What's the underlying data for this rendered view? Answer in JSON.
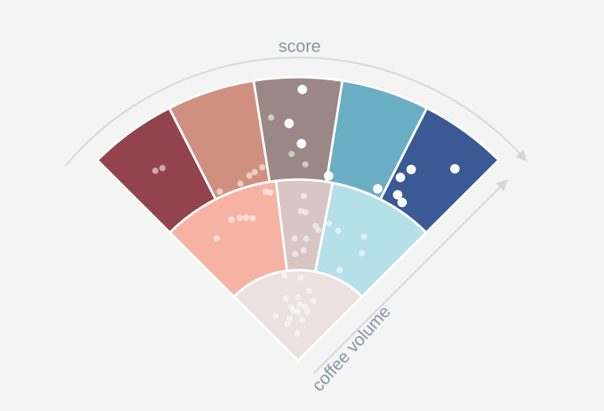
{
  "chart_data": {
    "type": "radial-segmented-fan",
    "title": "",
    "axis_labels": {
      "angular": "score",
      "radial": "coffee volume"
    },
    "outer_ring_colors": [
      "#92434c",
      "#d09080",
      "#9b8785",
      "#6aaec3",
      "#3b5995"
    ],
    "middle_ring_colors": [
      "#f6b3a3",
      "#d8c5c4",
      "#b6e0e8"
    ],
    "inner_ring_color": "#eae1e0",
    "separator_color": "#ffffff",
    "arrow_color": "#d6d6d6",
    "marker_color": "#ffffff",
    "outer_ring_points": [
      {
        "segment": 0,
        "t": 0.45,
        "r": 0.55,
        "emphasis": false
      },
      {
        "segment": 0,
        "t": 0.55,
        "r": 0.53,
        "emphasis": false
      },
      {
        "segment": 1,
        "t": 0.68,
        "r": 0.1,
        "emphasis": false
      },
      {
        "segment": 1,
        "t": 0.78,
        "r": 0.12,
        "emphasis": false
      },
      {
        "segment": 1,
        "t": 0.5,
        "r": 0.05,
        "emphasis": false
      },
      {
        "segment": 1,
        "t": 0.92,
        "r": 0.15,
        "emphasis": false
      },
      {
        "segment": 1,
        "t": 0.12,
        "r": 0.05,
        "emphasis": false
      },
      {
        "segment": 2,
        "t": 0.55,
        "r": 0.88,
        "emphasis": true
      },
      {
        "segment": 2,
        "t": 0.38,
        "r": 0.55,
        "emphasis": true
      },
      {
        "segment": 2,
        "t": 0.55,
        "r": 0.35,
        "emphasis": true
      },
      {
        "segment": 2,
        "t": 0.15,
        "r": 0.62,
        "emphasis": false
      },
      {
        "segment": 2,
        "t": 0.4,
        "r": 0.25,
        "emphasis": false
      },
      {
        "segment": 2,
        "t": 0.62,
        "r": 0.15,
        "emphasis": false
      },
      {
        "segment": 3,
        "t": 0.02,
        "r": 0.06,
        "emphasis": true
      },
      {
        "segment": 3,
        "t": 0.88,
        "r": 0.08,
        "emphasis": true
      },
      {
        "segment": 4,
        "t": 0.2,
        "r": 0.4,
        "emphasis": true
      },
      {
        "segment": 4,
        "t": 0.12,
        "r": 0.28,
        "emphasis": true
      },
      {
        "segment": 4,
        "t": 0.22,
        "r": 0.12,
        "emphasis": true
      },
      {
        "segment": 4,
        "t": 0.35,
        "r": 0.08,
        "emphasis": true
      },
      {
        "segment": 4,
        "t": 0.68,
        "r": 0.65,
        "emphasis": true
      }
    ],
    "middle_ring_points": [
      {
        "segment": 0,
        "t": 0.3,
        "r": 0.62,
        "emphasis": false
      },
      {
        "segment": 0,
        "t": 0.52,
        "r": 0.72,
        "emphasis": false
      },
      {
        "segment": 0,
        "t": 0.6,
        "r": 0.7,
        "emphasis": false
      },
      {
        "segment": 0,
        "t": 0.66,
        "r": 0.68,
        "emphasis": false
      },
      {
        "segment": 0,
        "t": 0.72,
        "r": 0.65,
        "emphasis": false
      },
      {
        "segment": 0,
        "t": 0.9,
        "r": 0.9,
        "emphasis": false
      },
      {
        "segment": 0,
        "t": 0.94,
        "r": 0.88,
        "emphasis": false
      },
      {
        "segment": 1,
        "t": 0.5,
        "r": 0.82,
        "emphasis": false
      },
      {
        "segment": 1,
        "t": 0.45,
        "r": 0.65,
        "emphasis": false
      },
      {
        "segment": 1,
        "t": 0.55,
        "r": 0.64,
        "emphasis": false
      },
      {
        "segment": 1,
        "t": 0.3,
        "r": 0.35,
        "emphasis": false
      },
      {
        "segment": 1,
        "t": 0.6,
        "r": 0.35,
        "emphasis": false
      },
      {
        "segment": 1,
        "t": 0.8,
        "r": 0.5,
        "emphasis": false
      },
      {
        "segment": 1,
        "t": 0.88,
        "r": 0.46,
        "emphasis": false
      },
      {
        "segment": 1,
        "t": 0.3,
        "r": 0.18,
        "emphasis": false
      },
      {
        "segment": 1,
        "t": 0.55,
        "r": 0.22,
        "emphasis": false
      },
      {
        "segment": 2,
        "t": 0.05,
        "r": 0.55,
        "emphasis": false
      },
      {
        "segment": 2,
        "t": 0.18,
        "r": 0.5,
        "emphasis": false
      },
      {
        "segment": 2,
        "t": 0.5,
        "r": 0.55,
        "emphasis": false
      },
      {
        "segment": 2,
        "t": 0.58,
        "r": 0.38,
        "emphasis": false
      },
      {
        "segment": 2,
        "t": 0.4,
        "r": 0.1,
        "emphasis": false
      }
    ],
    "inner_ring_points": [
      {
        "t": 0.4,
        "r": 0.95,
        "emphasis": false
      },
      {
        "t": 0.52,
        "r": 0.92,
        "emphasis": false
      },
      {
        "t": 0.38,
        "r": 0.7,
        "emphasis": false
      },
      {
        "t": 0.5,
        "r": 0.7,
        "emphasis": false
      },
      {
        "t": 0.6,
        "r": 0.78,
        "emphasis": false
      },
      {
        "t": 0.42,
        "r": 0.6,
        "emphasis": false
      },
      {
        "t": 0.52,
        "r": 0.62,
        "emphasis": false
      },
      {
        "t": 0.58,
        "r": 0.6,
        "emphasis": false
      },
      {
        "t": 0.66,
        "r": 0.68,
        "emphasis": false
      },
      {
        "t": 0.44,
        "r": 0.55,
        "emphasis": false
      },
      {
        "t": 0.5,
        "r": 0.54,
        "emphasis": false
      },
      {
        "t": 0.62,
        "r": 0.55,
        "emphasis": false
      },
      {
        "t": 0.2,
        "r": 0.55,
        "emphasis": false
      },
      {
        "t": 0.32,
        "r": 0.42,
        "emphasis": false
      },
      {
        "t": 0.38,
        "r": 0.48,
        "emphasis": false
      },
      {
        "t": 0.48,
        "r": 0.3,
        "emphasis": false
      },
      {
        "t": 0.56,
        "r": 0.45,
        "emphasis": false
      }
    ]
  }
}
